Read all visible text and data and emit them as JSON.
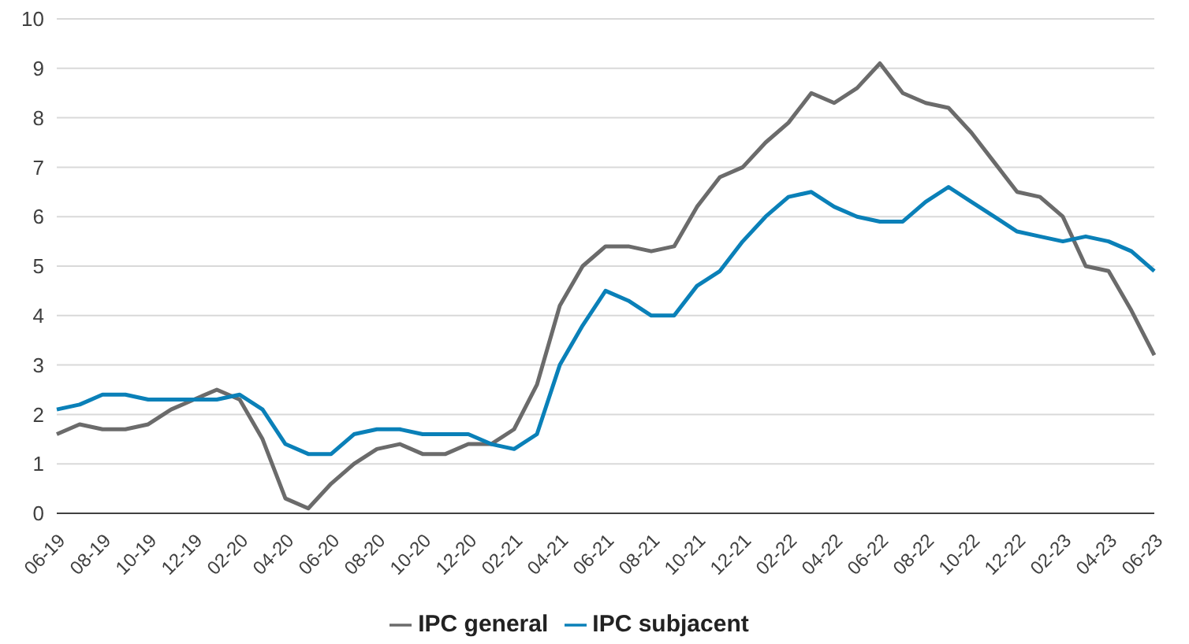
{
  "chart_data": {
    "type": "line",
    "categories": [
      "06-19",
      null,
      "08-19",
      null,
      "10-19",
      null,
      "12-19",
      null,
      "02-20",
      null,
      "04-20",
      null,
      "06-20",
      null,
      "08-20",
      null,
      "10-20",
      null,
      "12-20",
      null,
      "02-21",
      null,
      "04-21",
      null,
      "06-21",
      null,
      "08-21",
      null,
      "10-21",
      null,
      "12-21",
      null,
      "02-22",
      null,
      "04-22",
      null,
      "06-22",
      null,
      "08-22",
      null,
      "10-22",
      null,
      "12-22",
      null,
      "02-23",
      null,
      "04-23",
      null,
      "06-23"
    ],
    "series": [
      {
        "name": "IPC general",
        "color": "#6b6b6b",
        "values": [
          1.6,
          1.8,
          1.7,
          1.7,
          1.8,
          2.1,
          2.3,
          2.5,
          2.3,
          1.5,
          0.3,
          0.1,
          0.6,
          1.0,
          1.3,
          1.4,
          1.2,
          1.2,
          1.4,
          1.4,
          1.7,
          2.6,
          4.2,
          5.0,
          5.4,
          5.4,
          5.3,
          5.4,
          6.2,
          6.8,
          7.0,
          7.5,
          7.9,
          8.5,
          8.3,
          8.6,
          9.1,
          8.5,
          8.3,
          8.2,
          7.7,
          7.1,
          6.5,
          6.4,
          6.0,
          5.0,
          4.9,
          4.1,
          3.2
        ]
      },
      {
        "name": "IPC subjacent",
        "color": "#0a80b8",
        "values": [
          2.1,
          2.2,
          2.4,
          2.4,
          2.3,
          2.3,
          2.3,
          2.3,
          2.4,
          2.1,
          1.4,
          1.2,
          1.2,
          1.6,
          1.7,
          1.7,
          1.6,
          1.6,
          1.6,
          1.4,
          1.3,
          1.6,
          3.0,
          3.8,
          4.5,
          4.3,
          4.0,
          4.0,
          4.6,
          4.9,
          5.5,
          6.0,
          6.4,
          6.5,
          6.2,
          6.0,
          5.9,
          5.9,
          6.3,
          6.6,
          6.3,
          6.0,
          5.7,
          5.6,
          5.5,
          5.6,
          5.5,
          5.3,
          4.9
        ]
      }
    ],
    "ylim": [
      0,
      10
    ],
    "yticks": [
      0,
      1,
      2,
      3,
      4,
      5,
      6,
      7,
      8,
      9,
      10
    ],
    "grid": "y",
    "legend": "bottom",
    "marker": "none",
    "line_style": "solid"
  }
}
